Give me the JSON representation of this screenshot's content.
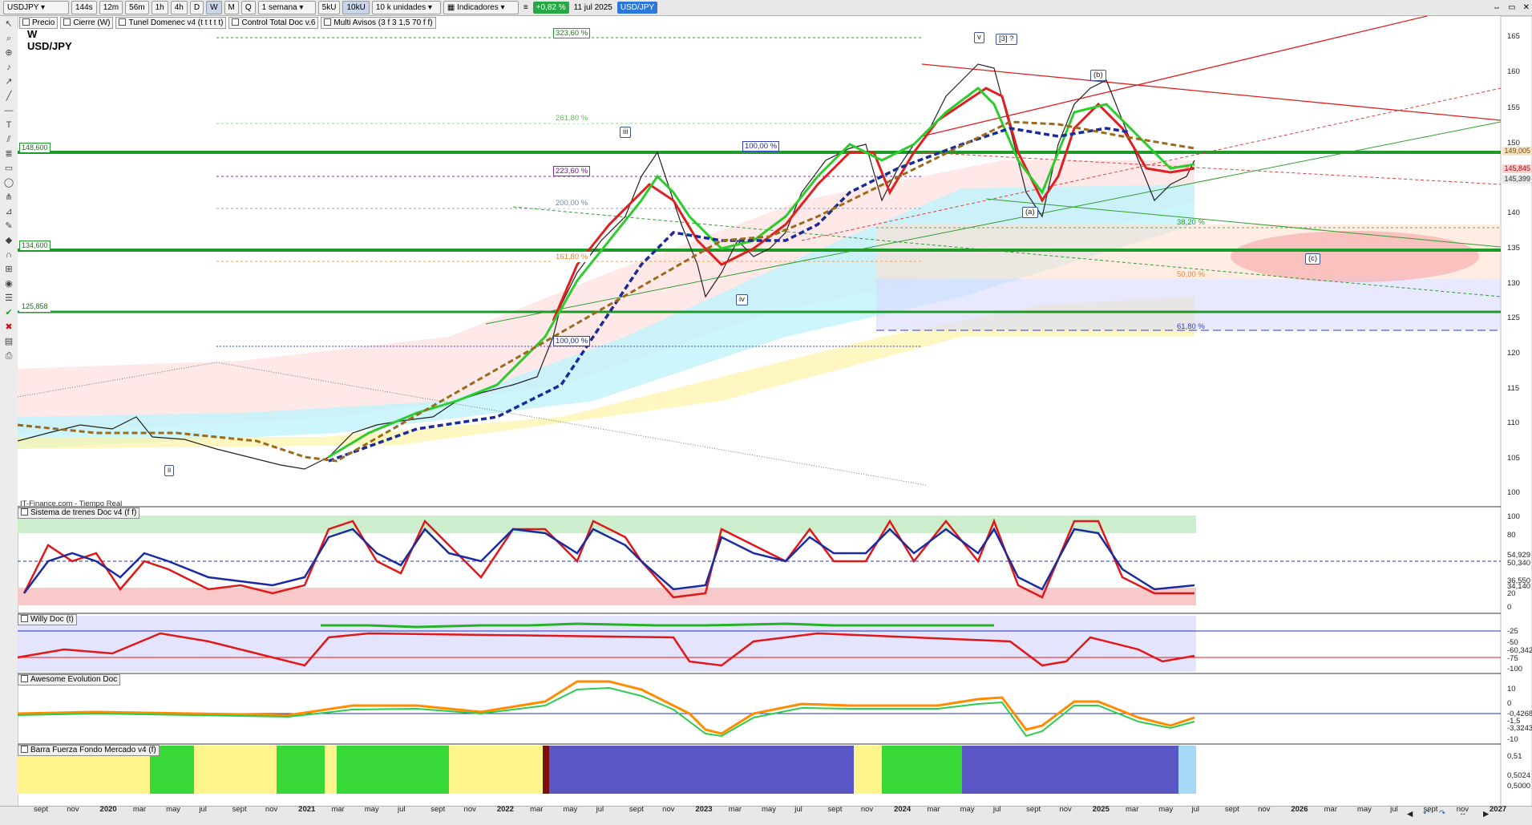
{
  "toolbar": {
    "symbol": "USDJPY",
    "buttons": [
      "144s",
      "12m",
      "56m",
      "1h",
      "4h",
      "D",
      "W",
      "M",
      "Q"
    ],
    "active_button": "W",
    "period": "1 semana",
    "units_btn": "5kU",
    "units_btn2": "10kU",
    "units_select": "10 k unidades",
    "indicators": "Indicadores",
    "change": "+0,82 %",
    "date": "11 jul 2025",
    "pair_badge": "USD/JPY"
  },
  "chips": [
    "Precio",
    "Cierre (W)",
    "Tunel Domenec v4 (t t t t t)",
    "Control Total Doc v.6",
    "Multi Avisos (3 f 3 1,5 70 f f)"
  ],
  "main": {
    "timeframe": "W",
    "pair": "USD/JPY",
    "source": "IT-Finance.com - Tiempo Real",
    "y_ticks": [
      "165",
      "160",
      "155",
      "150",
      "145",
      "140",
      "135",
      "130",
      "125",
      "120",
      "115",
      "110",
      "105",
      "100"
    ],
    "levels": [
      "148,600",
      "134,600",
      "125,858"
    ],
    "price_tags": [
      "149,005",
      "145,845",
      "145,399"
    ],
    "fib_labels": [
      "323,60 %",
      "261,80 %",
      "223,60 %",
      "200,00 %",
      "161,80 %",
      "100,00 %",
      "100,00 %",
      "38,20 %",
      "50,00 %",
      "61,80 %"
    ],
    "wave_labels": [
      "v",
      "[3] ?",
      "iii",
      "(b)",
      "iv",
      "(a)",
      "(c)",
      "ii"
    ]
  },
  "panels": {
    "trenes": {
      "title": "Sistema de trenes Doc v4 (f f)",
      "ticks": [
        "100",
        "80",
        "54,929",
        "50,340",
        "36,550",
        "34,140",
        "20",
        "0"
      ]
    },
    "willy": {
      "title": "Willy Doc (t)",
      "ticks": [
        "-25",
        "-50",
        "-60,342",
        "-75",
        "-100"
      ]
    },
    "awesome": {
      "title": "Awesome Evolution Doc",
      "ticks": [
        "10",
        "0",
        "-0,4268",
        "-1,5",
        "-3,3243",
        "-10"
      ]
    },
    "barra": {
      "title": "Barra Fuerza Fondo Mercado v4 (f)",
      "ticks": [
        "0,51",
        "0,5024",
        "0,5000"
      ]
    }
  },
  "x_axis": [
    "sept",
    "nov",
    "2020",
    "mar",
    "may",
    "jul",
    "sept",
    "nov",
    "2021",
    "mar",
    "may",
    "jul",
    "sept",
    "nov",
    "2022",
    "mar",
    "may",
    "jul",
    "sept",
    "nov",
    "2023",
    "mar",
    "may",
    "jul",
    "sept",
    "nov",
    "2024",
    "mar",
    "may",
    "jul",
    "sept",
    "nov",
    "2025",
    "mar",
    "may",
    "jul",
    "sept",
    "nov",
    "2026",
    "mar",
    "may",
    "jul",
    "sept",
    "nov",
    "2027"
  ],
  "colors": {
    "accent_green": "#27a844",
    "accent_blue": "#2d78d8",
    "level_green": "#1d9a2a"
  }
}
